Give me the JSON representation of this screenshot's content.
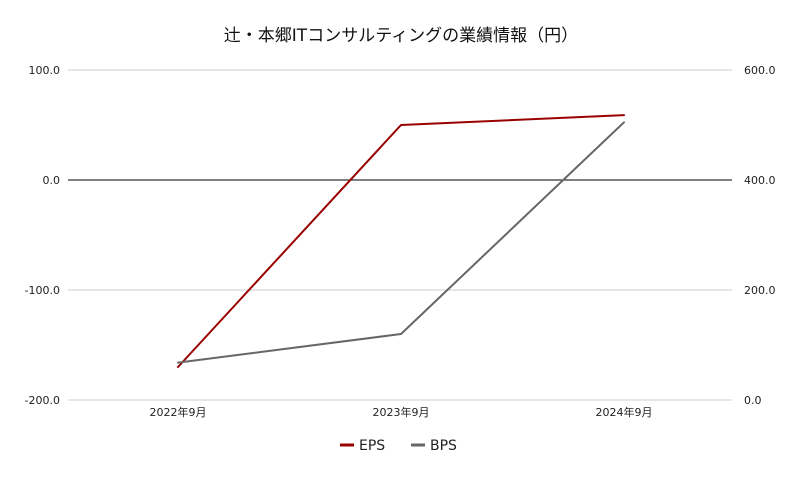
{
  "chart_data": {
    "type": "line",
    "title": "辻・本郷ITコンサルティングの業績情報（円）",
    "categories": [
      "2022年9月",
      "2023年9月",
      "2024年9月"
    ],
    "series": [
      {
        "name": "EPS",
        "axis": "left",
        "color": "#990000",
        "values": [
          -170.0,
          50.0,
          59.0
        ]
      },
      {
        "name": "BPS",
        "axis": "right",
        "color": "#666666",
        "values": [
          68.0,
          120.0,
          505.0
        ]
      }
    ],
    "y_left": {
      "lim": [
        -200,
        100
      ],
      "ticks": [
        100,
        0,
        -100,
        -200
      ],
      "tick_labels": [
        "100.0",
        "0.0",
        "-100.0",
        "-200.0"
      ]
    },
    "y_right": {
      "lim": [
        0,
        600
      ],
      "ticks": [
        600,
        400,
        200,
        0
      ],
      "tick_labels": [
        "600.0",
        "400.0",
        "200.0",
        "0.0"
      ]
    },
    "grid": true,
    "legend_position": "bottom-center",
    "zero_line_color": "#000000",
    "grid_color": "#cccccc"
  }
}
